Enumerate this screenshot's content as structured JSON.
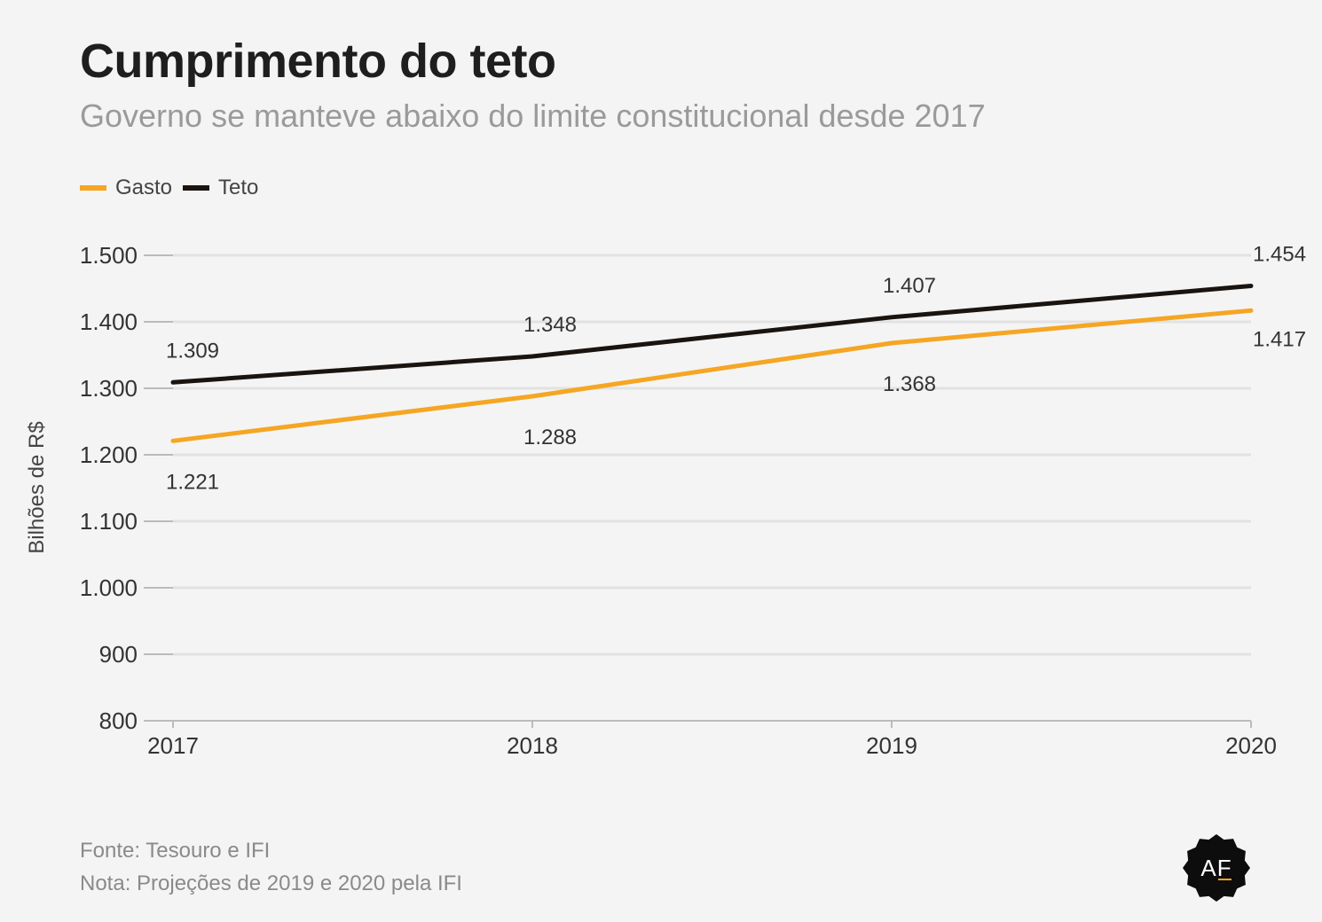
{
  "title": "Cumprimento do teto",
  "subtitle": "Governo se manteve abaixo do limite constitucional desde 2017",
  "legend": [
    {
      "label": "Gasto",
      "color": "#f5a623"
    },
    {
      "label": "Teto",
      "color": "#1a1410"
    }
  ],
  "footer": {
    "source": "Fonte: Tesouro e IFI",
    "note": "Nota: Projeções de 2019 e 2020 pela IFI"
  },
  "logo": {
    "letter_a": "A",
    "letter_f": "F",
    "icon": "af-badge-logo"
  },
  "chart_data": {
    "type": "line",
    "title": "Cumprimento do teto",
    "subtitle": "Governo se manteve abaixo do limite constitucional desde 2017",
    "ylabel": "Bilhões de R$",
    "xlabel": "",
    "categories": [
      "2017",
      "2018",
      "2019",
      "2020"
    ],
    "ylim": [
      800,
      1500
    ],
    "yticks": [
      800,
      900,
      1000,
      1100,
      1200,
      1300,
      1400,
      1500
    ],
    "ytick_labels": [
      "800",
      "900",
      "1.000",
      "1.100",
      "1.200",
      "1.300",
      "1.400",
      "1.500"
    ],
    "grid": true,
    "legend_position": "top-left",
    "series": [
      {
        "name": "Gasto",
        "color": "#f5a623",
        "values": [
          1221,
          1288,
          1368,
          1417
        ],
        "labels": [
          "1.221",
          "1.288",
          "1.368",
          "1.417"
        ],
        "label_position": "below"
      },
      {
        "name": "Teto",
        "color": "#1a1410",
        "values": [
          1309,
          1348,
          1407,
          1454
        ],
        "labels": [
          "1.309",
          "1.348",
          "1.407",
          "1.454"
        ],
        "label_position": "above"
      }
    ]
  }
}
